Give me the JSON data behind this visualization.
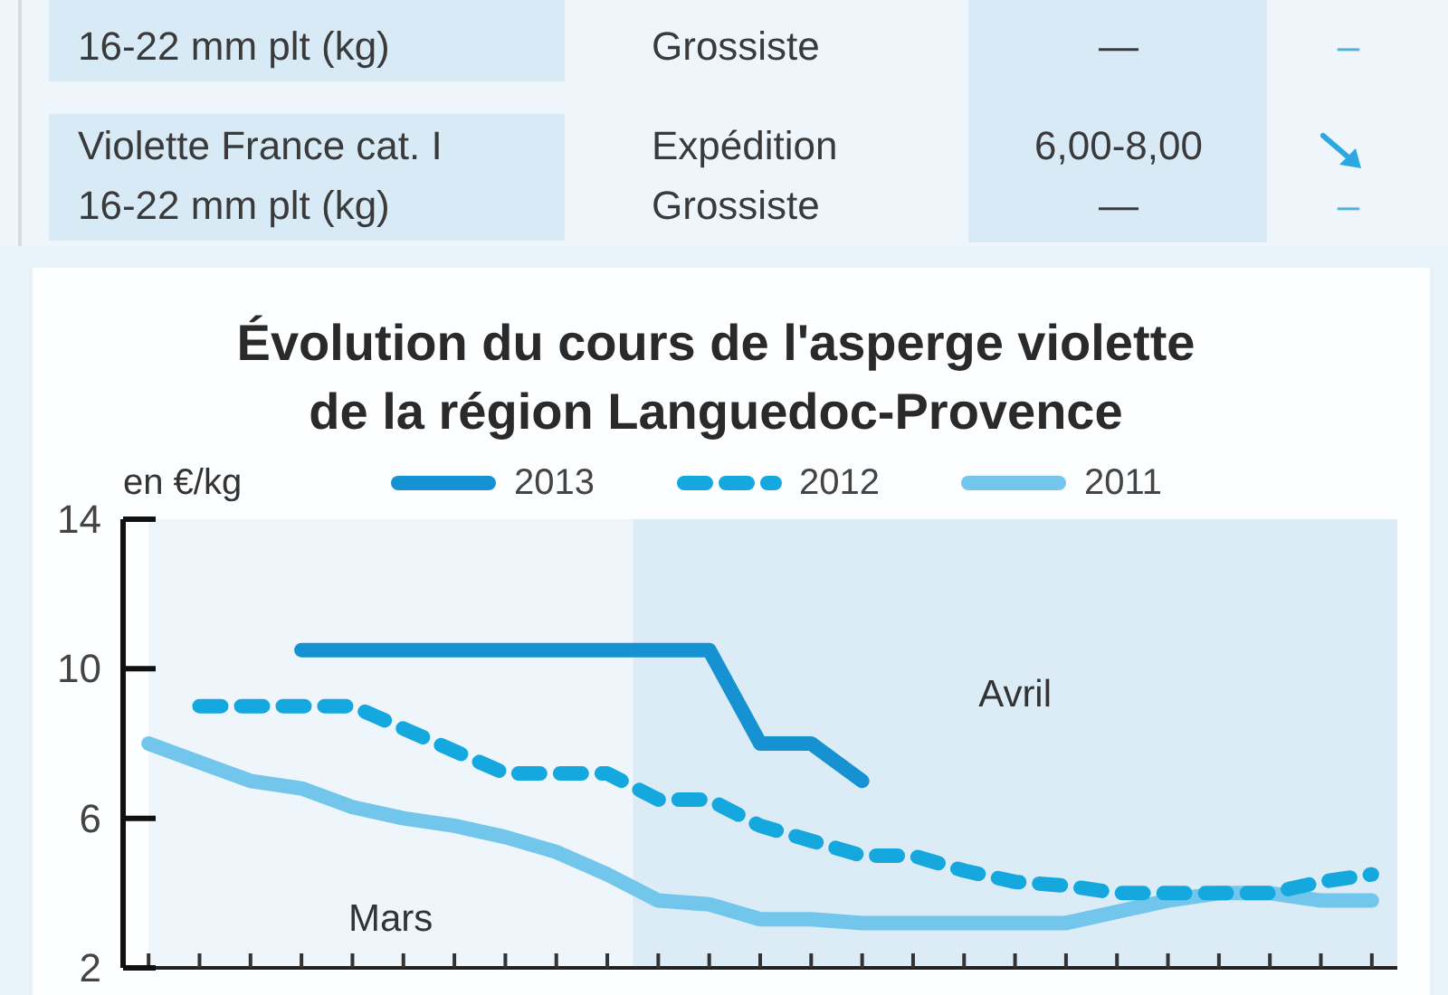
{
  "chart_data": [
    {
      "type": "other",
      "annotations": [
        "16-22 mm plt (kg)",
        "Grossiste",
        "—",
        "–",
        "Violette France cat. I\n16-22 mm plt (kg)",
        "Expédition\nGrossiste",
        "6,00-8,00\n—",
        "–"
      ]
    },
    {
      "type": "line",
      "title": "Évolution du cours de l'asperge violette de la région Languedoc-Provence",
      "ylabel": "en €/kg",
      "categories": [
        null,
        null,
        null,
        null,
        null,
        null,
        null,
        null,
        null,
        null,
        null,
        null,
        null,
        null,
        null,
        null,
        null,
        null,
        null,
        null,
        null,
        null,
        null,
        null,
        null
      ],
      "series": [
        {
          "name": "2013",
          "color": "#1691d1",
          "line_style": "solid",
          "values": [
            null,
            null,
            null,
            10.5,
            10.5,
            10.5,
            10.5,
            10.5,
            10.5,
            10.5,
            10.5,
            10.5,
            8,
            8,
            7,
            null,
            null,
            null,
            null,
            null,
            null,
            null,
            null,
            null,
            null
          ]
        },
        {
          "name": "2012",
          "color": "#14a8df",
          "line_style": "dashed",
          "values": [
            null,
            9,
            9,
            9,
            9,
            8.4,
            7.8,
            7.2,
            7.2,
            7.2,
            6.5,
            6.5,
            5.8,
            5.4,
            5,
            5,
            4.6,
            4.3,
            4.2,
            4,
            4,
            4,
            4,
            4.3,
            4.5
          ]
        },
        {
          "name": "2011",
          "color": "#72c6ec",
          "line_style": "solid",
          "values": [
            8,
            7.5,
            7,
            6.8,
            6.3,
            6,
            5.8,
            5.5,
            5.1,
            4.5,
            3.8,
            3.7,
            3.3,
            3.3,
            3.2,
            3.2,
            3.2,
            3.2,
            3.2,
            3.5,
            3.8,
            4,
            4,
            3.8,
            3.8
          ]
        }
      ],
      "ylim": [
        2,
        14
      ],
      "yticks": [
        2,
        6,
        10,
        14
      ],
      "tick_labels": "y",
      "legend": "top",
      "marker": "none",
      "annotations": [
        "Mars",
        "Avril"
      ]
    }
  ]
}
